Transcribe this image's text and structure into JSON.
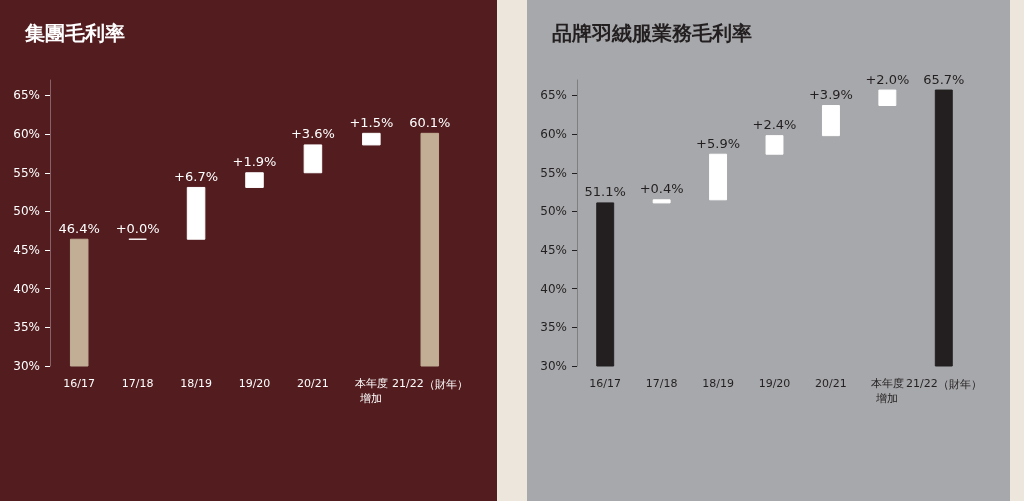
{
  "chart_data": [
    {
      "type": "bar",
      "title": "集團毛利率",
      "categories": [
        "16/17",
        "17/18",
        "18/19",
        "19/20",
        "20/21",
        "本年度增加",
        "21/22（財年）"
      ],
      "values": [
        46.4,
        0.0,
        6.7,
        1.9,
        3.6,
        1.5,
        60.1
      ],
      "base": [
        0,
        46.4,
        46.4,
        53.1,
        55.0,
        58.6,
        0
      ],
      "colors": [
        "#c2ae95",
        "#ffffff",
        "#ffffff",
        "#ffffff",
        "#ffffff",
        "#ffffff",
        "#c2ae95"
      ],
      "value_labels": [
        "46.4%",
        "+0.0%",
        "+6.7%",
        "+1.9%",
        "+3.6%",
        "+1.5%",
        "60.1%"
      ],
      "ylim": [
        30,
        67
      ],
      "yticks": [
        {
          "value": 30,
          "label": "30%"
        },
        {
          "value": 35,
          "label": "35%"
        },
        {
          "value": 40,
          "label": "40%"
        },
        {
          "value": 45,
          "label": "45%"
        },
        {
          "value": 50,
          "label": "50%"
        },
        {
          "value": 55,
          "label": "55%"
        },
        {
          "value": 60,
          "label": "60%"
        },
        {
          "value": 65,
          "label": "65%"
        }
      ],
      "grid": false
    },
    {
      "type": "bar",
      "title": "品牌羽絨服業務毛利率",
      "categories": [
        "16/17",
        "17/18",
        "18/19",
        "19/20",
        "20/21",
        "本年度增加",
        "21/22（財年）"
      ],
      "values": [
        51.1,
        0.4,
        5.9,
        2.4,
        3.9,
        2.0,
        65.7
      ],
      "base": [
        0,
        51.1,
        51.5,
        57.4,
        59.8,
        63.7,
        0
      ],
      "colors": [
        "#231f20",
        "#ffffff",
        "#ffffff",
        "#ffffff",
        "#ffffff",
        "#ffffff",
        "#231f20"
      ],
      "value_labels": [
        "51.1%",
        "+0.4%",
        "+5.9%",
        "+2.4%",
        "+3.9%",
        "+2.0%",
        "65.7%"
      ],
      "ylim": [
        30,
        67
      ],
      "yticks": [
        {
          "value": 30,
          "label": "30%"
        },
        {
          "value": 35,
          "label": "35%"
        },
        {
          "value": 40,
          "label": "40%"
        },
        {
          "value": 45,
          "label": "45%"
        },
        {
          "value": 50,
          "label": "50%"
        },
        {
          "value": 55,
          "label": "55%"
        },
        {
          "value": 60,
          "label": "60%"
        },
        {
          "value": 65,
          "label": "65%"
        }
      ],
      "grid": false
    }
  ]
}
